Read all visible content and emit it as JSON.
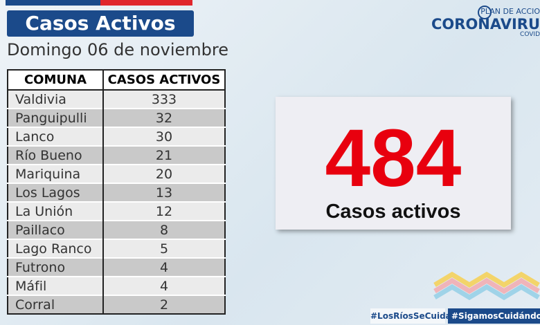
{
  "header": {
    "title": "Casos Activos",
    "subtitle": "Domingo 06 de noviembre"
  },
  "logo": {
    "top": "PLAN DE ACCIO",
    "main": "CORONAVIRU",
    "bottom": "COVID"
  },
  "table": {
    "columns": [
      "COMUNA",
      "CASOS ACTIVOS"
    ],
    "rows": [
      [
        "Valdivia",
        "333"
      ],
      [
        "Panguipulli",
        "32"
      ],
      [
        "Lanco",
        "30"
      ],
      [
        "Río Bueno",
        "21"
      ],
      [
        "Mariquina",
        "20"
      ],
      [
        "Los Lagos",
        "13"
      ],
      [
        "La Unión",
        "12"
      ],
      [
        "Paillaco",
        "8"
      ],
      [
        "Lago Ranco",
        "5"
      ],
      [
        "Futrono",
        "4"
      ],
      [
        "Máfil",
        "4"
      ],
      [
        "Corral",
        "2"
      ]
    ]
  },
  "total": {
    "value": "484",
    "label": "Casos activos"
  },
  "footer": {
    "tag1": "#LosRíosSeCuida",
    "tag2": "#SigamosCuidándon"
  }
}
